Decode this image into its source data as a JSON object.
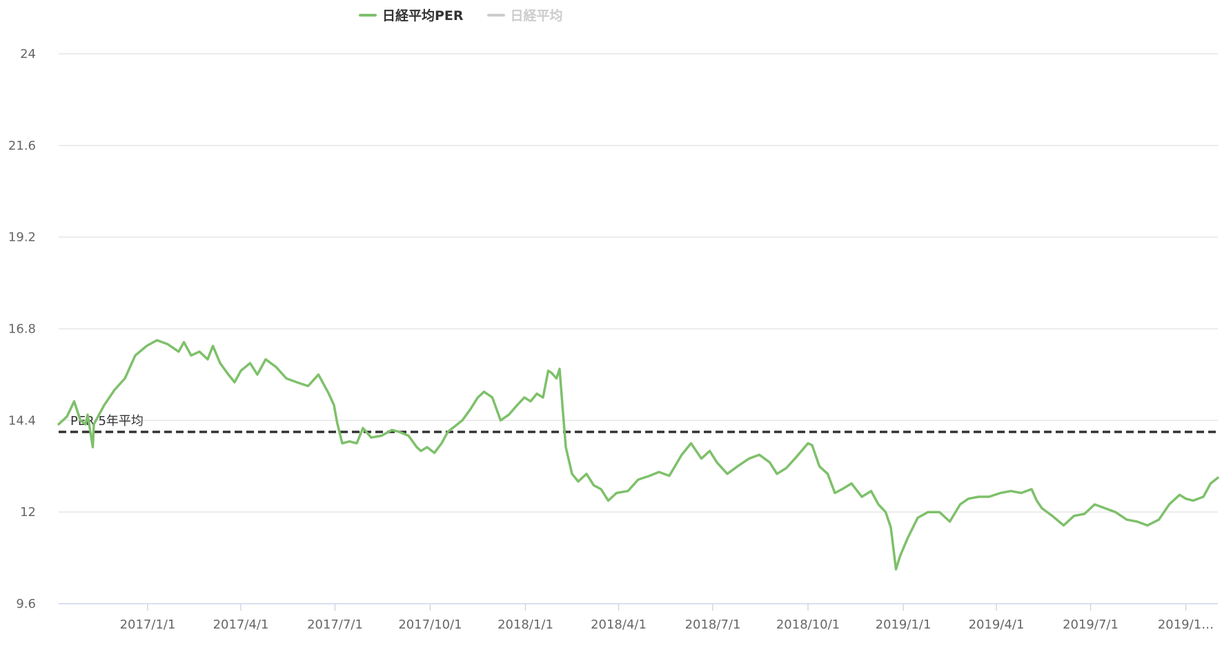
{
  "chart_data": {
    "type": "line",
    "legend": [
      {
        "name": "日経平均PER",
        "color": "#7ec06a",
        "active": true
      },
      {
        "name": "日経平均",
        "color": "#cccccc",
        "active": false
      }
    ],
    "y_ticks": [
      "24",
      "21.6",
      "19.2",
      "16.8",
      "14.4",
      "12",
      "9.6"
    ],
    "ylim": [
      9.6,
      24
    ],
    "x_ticks": [
      "2017/1/1",
      "2017/4/1",
      "2017/7/1",
      "2017/10/1",
      "2018/1/1",
      "2018/4/1",
      "2018/7/1",
      "2018/10/1",
      "2019/1/1",
      "2019/4/1",
      "2019/7/1",
      "2019/1…"
    ],
    "x_tick_dates": [
      "2017-01-01",
      "2017-04-01",
      "2017-07-01",
      "2017-10-01",
      "2018-01-01",
      "2018-04-01",
      "2018-07-01",
      "2018-10-01",
      "2019-01-01",
      "2019-04-01",
      "2019-07-01",
      "2019-10-01"
    ],
    "x_range": [
      "2016-10-07",
      "2019-11-01"
    ],
    "reference_line": {
      "label": "PER 5年平均",
      "value": 14.1,
      "color": "#333333",
      "style": "dashed"
    },
    "grid": true,
    "series": [
      {
        "name": "日経平均PER",
        "color": "#7ec06a",
        "points": [
          [
            "2016-10-07",
            14.3
          ],
          [
            "2016-10-15",
            14.5
          ],
          [
            "2016-10-22",
            14.9
          ],
          [
            "2016-10-28",
            14.4
          ],
          [
            "2016-11-02",
            14.3
          ],
          [
            "2016-11-04",
            14.55
          ],
          [
            "2016-11-09",
            13.7
          ],
          [
            "2016-11-10",
            14.3
          ],
          [
            "2016-11-20",
            14.8
          ],
          [
            "2016-11-30",
            15.2
          ],
          [
            "2016-12-10",
            15.5
          ],
          [
            "2016-12-20",
            16.1
          ],
          [
            "2016-12-31",
            16.35
          ],
          [
            "2017-01-10",
            16.5
          ],
          [
            "2017-01-20",
            16.4
          ],
          [
            "2017-01-31",
            16.2
          ],
          [
            "2017-02-05",
            16.45
          ],
          [
            "2017-02-12",
            16.1
          ],
          [
            "2017-02-20",
            16.2
          ],
          [
            "2017-02-28",
            16.0
          ],
          [
            "2017-03-05",
            16.35
          ],
          [
            "2017-03-12",
            15.9
          ],
          [
            "2017-03-20",
            15.6
          ],
          [
            "2017-03-26",
            15.4
          ],
          [
            "2017-04-01",
            15.7
          ],
          [
            "2017-04-10",
            15.9
          ],
          [
            "2017-04-17",
            15.6
          ],
          [
            "2017-04-25",
            16.0
          ],
          [
            "2017-05-05",
            15.8
          ],
          [
            "2017-05-15",
            15.5
          ],
          [
            "2017-05-25",
            15.4
          ],
          [
            "2017-06-05",
            15.3
          ],
          [
            "2017-06-15",
            15.6
          ],
          [
            "2017-06-25",
            15.1
          ],
          [
            "2017-06-30",
            14.8
          ],
          [
            "2017-07-03",
            14.35
          ],
          [
            "2017-07-08",
            13.8
          ],
          [
            "2017-07-15",
            13.85
          ],
          [
            "2017-07-22",
            13.8
          ],
          [
            "2017-07-28",
            14.2
          ],
          [
            "2017-08-05",
            13.95
          ],
          [
            "2017-08-15",
            14.0
          ],
          [
            "2017-08-25",
            14.15
          ],
          [
            "2017-09-01",
            14.1
          ],
          [
            "2017-09-10",
            14.0
          ],
          [
            "2017-09-18",
            13.7
          ],
          [
            "2017-09-22",
            13.6
          ],
          [
            "2017-09-28",
            13.7
          ],
          [
            "2017-10-05",
            13.55
          ],
          [
            "2017-10-12",
            13.8
          ],
          [
            "2017-10-18",
            14.1
          ],
          [
            "2017-10-25",
            14.25
          ],
          [
            "2017-11-01",
            14.4
          ],
          [
            "2017-11-09",
            14.7
          ],
          [
            "2017-11-16",
            15.0
          ],
          [
            "2017-11-22",
            15.15
          ],
          [
            "2017-11-30",
            15.0
          ],
          [
            "2017-12-08",
            14.4
          ],
          [
            "2017-12-16",
            14.55
          ],
          [
            "2017-12-24",
            14.8
          ],
          [
            "2017-12-31",
            15.0
          ],
          [
            "2018-01-06",
            14.9
          ],
          [
            "2018-01-12",
            15.1
          ],
          [
            "2018-01-18",
            15.0
          ],
          [
            "2018-01-23",
            15.7
          ],
          [
            "2018-01-26",
            15.65
          ],
          [
            "2018-01-31",
            15.5
          ],
          [
            "2018-02-03",
            15.75
          ],
          [
            "2018-02-06",
            14.7
          ],
          [
            "2018-02-09",
            13.7
          ],
          [
            "2018-02-15",
            13.0
          ],
          [
            "2018-02-21",
            12.8
          ],
          [
            "2018-03-01",
            13.0
          ],
          [
            "2018-03-08",
            12.7
          ],
          [
            "2018-03-15",
            12.6
          ],
          [
            "2018-03-22",
            12.3
          ],
          [
            "2018-03-30",
            12.5
          ],
          [
            "2018-04-10",
            12.55
          ],
          [
            "2018-04-20",
            12.85
          ],
          [
            "2018-05-01",
            12.95
          ],
          [
            "2018-05-10",
            13.05
          ],
          [
            "2018-05-20",
            12.95
          ],
          [
            "2018-06-01",
            13.5
          ],
          [
            "2018-06-10",
            13.8
          ],
          [
            "2018-06-20",
            13.4
          ],
          [
            "2018-06-28",
            13.6
          ],
          [
            "2018-07-05",
            13.3
          ],
          [
            "2018-07-15",
            13.0
          ],
          [
            "2018-07-25",
            13.2
          ],
          [
            "2018-08-05",
            13.4
          ],
          [
            "2018-08-15",
            13.5
          ],
          [
            "2018-08-25",
            13.3
          ],
          [
            "2018-09-01",
            13.0
          ],
          [
            "2018-09-10",
            13.15
          ],
          [
            "2018-09-20",
            13.45
          ],
          [
            "2018-10-01",
            13.8
          ],
          [
            "2018-10-05",
            13.75
          ],
          [
            "2018-10-12",
            13.2
          ],
          [
            "2018-10-20",
            13.0
          ],
          [
            "2018-10-27",
            12.5
          ],
          [
            "2018-11-03",
            12.6
          ],
          [
            "2018-11-12",
            12.75
          ],
          [
            "2018-11-22",
            12.4
          ],
          [
            "2018-12-01",
            12.55
          ],
          [
            "2018-12-08",
            12.2
          ],
          [
            "2018-12-15",
            12.0
          ],
          [
            "2018-12-20",
            11.6
          ],
          [
            "2018-12-25",
            10.5
          ],
          [
            "2018-12-29",
            10.85
          ],
          [
            "2019-01-05",
            11.3
          ],
          [
            "2019-01-15",
            11.85
          ],
          [
            "2019-01-25",
            12.0
          ],
          [
            "2019-02-05",
            12.0
          ],
          [
            "2019-02-15",
            11.75
          ],
          [
            "2019-02-25",
            12.2
          ],
          [
            "2019-03-05",
            12.35
          ],
          [
            "2019-03-15",
            12.4
          ],
          [
            "2019-03-25",
            12.4
          ],
          [
            "2019-04-05",
            12.5
          ],
          [
            "2019-04-15",
            12.55
          ],
          [
            "2019-04-25",
            12.5
          ],
          [
            "2019-05-05",
            12.6
          ],
          [
            "2019-05-10",
            12.3
          ],
          [
            "2019-05-15",
            12.1
          ],
          [
            "2019-05-25",
            11.9
          ],
          [
            "2019-06-05",
            11.65
          ],
          [
            "2019-06-15",
            11.9
          ],
          [
            "2019-06-25",
            11.95
          ],
          [
            "2019-07-05",
            12.2
          ],
          [
            "2019-07-15",
            12.1
          ],
          [
            "2019-07-25",
            12.0
          ],
          [
            "2019-08-05",
            11.8
          ],
          [
            "2019-08-15",
            11.75
          ],
          [
            "2019-08-25",
            11.65
          ],
          [
            "2019-09-05",
            11.8
          ],
          [
            "2019-09-15",
            12.2
          ],
          [
            "2019-09-25",
            12.45
          ],
          [
            "2019-10-01",
            12.35
          ],
          [
            "2019-10-08",
            12.3
          ],
          [
            "2019-10-18",
            12.4
          ],
          [
            "2019-10-25",
            12.75
          ],
          [
            "2019-11-01",
            12.9
          ]
        ]
      }
    ]
  }
}
